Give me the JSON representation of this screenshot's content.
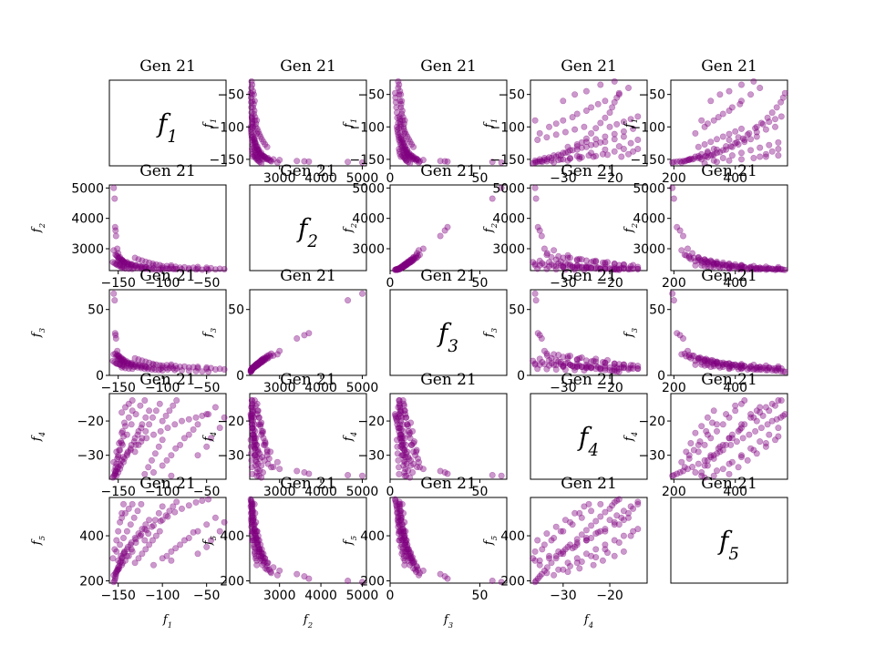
{
  "chart_data": {
    "type": "scatter",
    "title": "",
    "subtitle": "Gen 21",
    "point_color": "#800080",
    "point_alpha": 0.4,
    "variables": [
      {
        "name": "f1",
        "label": "f_1",
        "lim": [
          -160,
          -28
        ],
        "ticks": [
          -150,
          -100,
          -50
        ]
      },
      {
        "name": "f2",
        "label": "f_2",
        "lim": [
          2280,
          5100
        ],
        "ticks": [
          3000,
          4000,
          5000
        ]
      },
      {
        "name": "f3",
        "label": "f_3",
        "lim": [
          0,
          65
        ],
        "ticks": [
          0,
          50
        ]
      },
      {
        "name": "f4",
        "label": "f_4",
        "lim": [
          -37,
          -12
        ],
        "ticks": [
          -30,
          -20
        ]
      },
      {
        "name": "f5",
        "label": "f_5",
        "lim": [
          190,
          570
        ],
        "ticks": [
          200,
          400
        ]
      }
    ],
    "points": [
      [
        -155.0,
        5000,
        62.0,
        -36.0,
        195
      ],
      [
        -154.0,
        4650,
        57.0,
        -35.8,
        200
      ],
      [
        -153.5,
        3710,
        32.0,
        -35.4,
        210
      ],
      [
        -153.0,
        3600,
        30.5,
        -35.0,
        220
      ],
      [
        -152.5,
        3420,
        28.0,
        -34.6,
        230
      ],
      [
        -151.0,
        3000,
        18.5,
        -34.0,
        245
      ],
      [
        -150.0,
        2850,
        15.0,
        -33.4,
        260
      ],
      [
        -148.0,
        2720,
        13.0,
        -32.5,
        280
      ],
      [
        -146.0,
        2640,
        11.5,
        -31.5,
        300
      ],
      [
        -144.0,
        2580,
        10.0,
        -30.5,
        320
      ],
      [
        -140.0,
        2520,
        9.0,
        -29.5,
        340
      ],
      [
        -136.0,
        2480,
        8.0,
        -28.5,
        360
      ],
      [
        -130.0,
        2440,
        7.0,
        -27.0,
        385
      ],
      [
        -124.0,
        2410,
        6.5,
        -26.0,
        405
      ],
      [
        -118.0,
        2390,
        6.0,
        -25.0,
        425
      ],
      [
        -110.0,
        2370,
        5.5,
        -24.0,
        445
      ],
      [
        -102.0,
        2350,
        5.0,
        -23.0,
        465
      ],
      [
        -94.0,
        2340,
        4.5,
        -22.0,
        485
      ],
      [
        -86.0,
        2330,
        4.0,
        -21.0,
        505
      ],
      [
        -78.0,
        2325,
        3.8,
        -20.0,
        520
      ],
      [
        -70.0,
        2320,
        3.5,
        -19.5,
        535
      ],
      [
        -62.0,
        2315,
        3.2,
        -19.0,
        548
      ],
      [
        -55.0,
        2310,
        3.0,
        -18.5,
        556
      ],
      [
        -48.0,
        2305,
        2.8,
        -18.0,
        562
      ],
      [
        -150.0,
        2700,
        14.0,
        -30.0,
        250
      ],
      [
        -145.0,
        2620,
        12.0,
        -27.0,
        280
      ],
      [
        -140.0,
        2560,
        10.5,
        -24.0,
        310
      ],
      [
        -135.0,
        2500,
        9.5,
        -21.0,
        340
      ],
      [
        -130.0,
        2460,
        8.5,
        -18.0,
        370
      ],
      [
        -125.0,
        2420,
        7.8,
        -15.5,
        400
      ],
      [
        -120.0,
        2400,
        7.2,
        -14.0,
        430
      ],
      [
        -155.0,
        2950,
        16.0,
        -32.0,
        225
      ],
      [
        -152.0,
        2780,
        14.5,
        -29.0,
        240
      ],
      [
        -149.0,
        2660,
        13.0,
        -26.5,
        255
      ],
      [
        -146.0,
        2590,
        11.0,
        -23.5,
        270
      ],
      [
        -142.0,
        2540,
        10.0,
        -21.5,
        290
      ],
      [
        -138.0,
        2500,
        9.0,
        -19.0,
        310
      ],
      [
        -134.0,
        2470,
        8.2,
        -17.0,
        330
      ],
      [
        -150.0,
        2600,
        12.5,
        -35.0,
        290
      ],
      [
        -147.0,
        2560,
        11.5,
        -33.0,
        310
      ],
      [
        -143.0,
        2520,
        10.5,
        -31.0,
        330
      ],
      [
        -139.0,
        2480,
        9.5,
        -29.0,
        350
      ],
      [
        -135.0,
        2450,
        8.8,
        -27.0,
        370
      ],
      [
        -131.0,
        2430,
        8.0,
        -25.0,
        390
      ],
      [
        -127.0,
        2410,
        7.5,
        -23.0,
        410
      ],
      [
        -123.0,
        2395,
        7.0,
        -21.0,
        430
      ],
      [
        -119.0,
        2380,
        6.5,
        -19.0,
        450
      ],
      [
        -115.0,
        2365,
        6.0,
        -17.0,
        470
      ],
      [
        -152.0,
        2500,
        9.0,
        -36.0,
        330
      ],
      [
        -148.0,
        2470,
        8.5,
        -34.0,
        360
      ],
      [
        -144.0,
        2440,
        8.0,
        -32.0,
        390
      ],
      [
        -140.0,
        2420,
        7.5,
        -30.0,
        420
      ],
      [
        -136.0,
        2400,
        7.0,
        -28.0,
        450
      ],
      [
        -132.0,
        2380,
        6.5,
        -26.0,
        480
      ],
      [
        -128.0,
        2360,
        6.0,
        -24.0,
        510
      ],
      [
        -124.0,
        2345,
        5.5,
        -22.0,
        540
      ],
      [
        -100.0,
        2420,
        7.5,
        -33.0,
        300
      ],
      [
        -90.0,
        2400,
        7.0,
        -30.0,
        330
      ],
      [
        -80.0,
        2380,
        6.5,
        -27.0,
        360
      ],
      [
        -70.0,
        2360,
        6.0,
        -24.0,
        390
      ],
      [
        -60.0,
        2340,
        5.5,
        -21.0,
        420
      ],
      [
        -50.0,
        2330,
        5.0,
        -18.0,
        450
      ],
      [
        -40.0,
        2320,
        4.5,
        -16.0,
        480
      ],
      [
        -110.0,
        2450,
        8.0,
        -35.0,
        270
      ],
      [
        -95.0,
        2430,
        7.8,
        -31.5,
        310
      ],
      [
        -85.0,
        2410,
        7.2,
        -28.0,
        345
      ],
      [
        -75.0,
        2390,
        6.8,
        -25.0,
        380
      ],
      [
        -65.0,
        2375,
        6.2,
        -22.5,
        415
      ],
      [
        -142.0,
        2350,
        5.5,
        -16.0,
        500
      ],
      [
        -138.0,
        2340,
        5.2,
        -15.0,
        520
      ],
      [
        -134.0,
        2335,
        5.0,
        -14.0,
        540
      ],
      [
        -146.0,
        2360,
        6.0,
        -17.5,
        480
      ],
      [
        -120.0,
        2340,
        5.0,
        -35.5,
        380
      ],
      [
        -116.0,
        2330,
        4.8,
        -33.5,
        410
      ],
      [
        -112.0,
        2322,
        4.5,
        -31.5,
        440
      ],
      [
        -108.0,
        2315,
        4.2,
        -29.5,
        470
      ],
      [
        -104.0,
        2310,
        4.0,
        -27.5,
        500
      ],
      [
        -100.0,
        2305,
        3.8,
        -25.5,
        530
      ],
      [
        -153.0,
        2800,
        16.5,
        -33.5,
        235
      ],
      [
        -151.0,
        2750,
        15.5,
        -31.0,
        250
      ],
      [
        -149.0,
        2700,
        14.8,
        -28.5,
        265
      ],
      [
        -147.0,
        2650,
        13.5,
        -26.0,
        285
      ],
      [
        -145.0,
        2600,
        12.5,
        -23.0,
        305
      ],
      [
        -143.0,
        2560,
        11.5,
        -20.5,
        325
      ],
      [
        -60.0,
        2400,
        6.5,
        -30.0,
        320
      ],
      [
        -50.0,
        2380,
        6.0,
        -27.5,
        350
      ],
      [
        -45.0,
        2360,
        5.5,
        -25.0,
        380
      ],
      [
        -35.0,
        2340,
        5.0,
        -22.0,
        420
      ],
      [
        -30.0,
        2325,
        4.5,
        -19.0,
        460
      ],
      [
        -90.0,
        2450,
        8.2,
        -36.0,
        290
      ],
      [
        -156.0,
        2560,
        11.0,
        -36.5,
        300
      ],
      [
        -154.0,
        2520,
        10.0,
        -34.5,
        340
      ],
      [
        -152.0,
        2480,
        9.2,
        -32.5,
        380
      ],
      [
        -150.0,
        2450,
        8.6,
        -30.5,
        420
      ],
      [
        -148.0,
        2430,
        8.0,
        -28.5,
        460
      ],
      [
        -146.0,
        2410,
        7.4,
        -26.5,
        500
      ],
      [
        -144.0,
        2395,
        6.8,
        -24.5,
        540
      ],
      [
        -100.0,
        2360,
        6.0,
        -20.0,
        470
      ],
      [
        -96.0,
        2350,
        5.8,
        -18.5,
        490
      ],
      [
        -92.0,
        2340,
        5.6,
        -17.0,
        510
      ],
      [
        -88.0,
        2335,
        5.4,
        -15.5,
        530
      ],
      [
        -84.0,
        2330,
        5.2,
        -14.0,
        550
      ],
      [
        -131.0,
        2700,
        13.0,
        -29.0,
        280
      ],
      [
        -127.0,
        2650,
        12.0,
        -27.0,
        300
      ],
      [
        -123.0,
        2610,
        11.2,
        -25.0,
        320
      ],
      [
        -119.0,
        2570,
        10.4,
        -23.0,
        340
      ],
      [
        -115.0,
        2540,
        9.6,
        -21.0,
        360
      ],
      [
        -111.0,
        2510,
        8.8,
        -19.0,
        380
      ],
      [
        -107.0,
        2485,
        8.2,
        -17.0,
        400
      ],
      [
        -103.0,
        2460,
        7.6,
        -15.0,
        420
      ]
    ]
  }
}
